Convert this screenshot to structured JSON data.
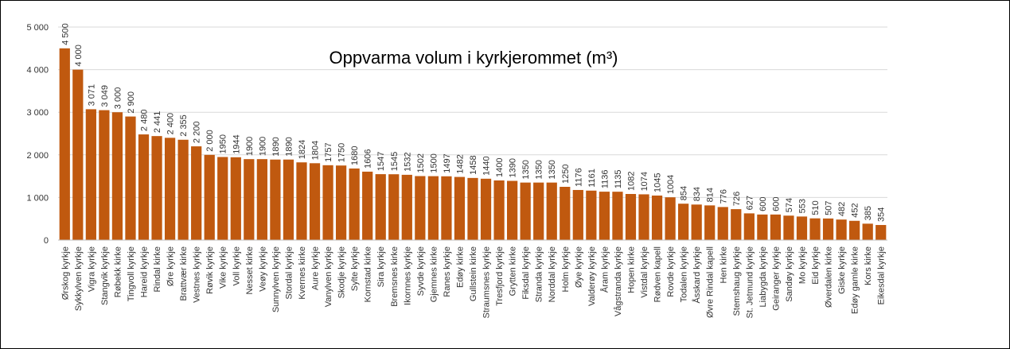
{
  "chart_data": {
    "type": "bar",
    "title": "Oppvarma volum i kyrkjerommet (m³)",
    "categories": [
      "Ørskog kyrkje",
      "Sykkylven kyrkje",
      "Vigra kyrkje",
      "Stangvik kyrkje",
      "Røbekk kirke",
      "Tingvoll kyrkje",
      "Hareid kyrkje",
      "Rindal kirke",
      "Øre kyrkje",
      "Brattvær kirke",
      "Vestnes kyrkje",
      "Røvik kyrkje",
      "Vike kyrkje",
      "Voll kyrkje",
      "Nesset kirke",
      "Veøy kyrkje",
      "Sunnylven kyrkje",
      "Stordal kyrkje",
      "Kvernes kirke",
      "Aure kyrkje",
      "Vanylven kyrkje",
      "Skodje kyrkje",
      "Sylte kyrkje",
      "Kornstad kirke",
      "Sira kyrkje",
      "Bremsnes kirke",
      "Ikornnes kyrkje",
      "Syvde kyrkje",
      "Gjemnes kirke",
      "Ranes kyrkje",
      "Edøy kirke",
      "Gullstein kirke",
      "Straumsnes kyrkje",
      "Tresfjord kyrkje",
      "Grytten kirke",
      "Fiksdal kyrkje",
      "Stranda kyrkje",
      "Norddal kyrkje",
      "Holm kyrkje",
      "Øye kyrkje",
      "Valderøy kyrkje",
      "Åram kyrkje",
      "Vågstranda kyrkje",
      "Hopen kirke",
      "Vistdal kyrkje",
      "Rødven kapell",
      "Rovde kyrkje",
      "Todalen kyrkje",
      "Åsskard kyrkje",
      "Øvre Rindal kapell",
      "Hen kirke",
      "Stemshaug kyrkje",
      "St. Jetmund kyrkje",
      "Liabygda kyrkje",
      "Geiranger kyrkje",
      "Sandøy kyrkje",
      "Mo kyrkje",
      "Eid kyrkje",
      "Øverdalen kirke",
      "Giske kyrkje",
      "Edøy gamle kirke",
      "Kors kirke",
      "Eikesdal kyrkje"
    ],
    "values": [
      4500,
      4000,
      3071,
      3049,
      3000,
      2900,
      2480,
      2441,
      2400,
      2355,
      2200,
      2000,
      1950,
      1944,
      1900,
      1900,
      1890,
      1890,
      1824,
      1804,
      1757,
      1750,
      1680,
      1606,
      1547,
      1545,
      1532,
      1502,
      1500,
      1497,
      1482,
      1458,
      1440,
      1400,
      1390,
      1350,
      1350,
      1350,
      1250,
      1176,
      1161,
      1136,
      1135,
      1082,
      1074,
      1045,
      1004,
      854,
      834,
      814,
      776,
      726,
      627,
      600,
      600,
      574,
      553,
      510,
      507,
      482,
      452,
      385,
      354
    ],
    "value_labels": [
      "4 500",
      "4 000",
      "3 071",
      "3 049",
      "3 000",
      "2 900",
      "2 480",
      "2 441",
      "2 400",
      "2 355",
      "2 200",
      "2 000",
      "1950",
      "1944",
      "1900",
      "1900",
      "1890",
      "1890",
      "1824",
      "1804",
      "1757",
      "1750",
      "1680",
      "1606",
      "1547",
      "1545",
      "1532",
      "1502",
      "1500",
      "1497",
      "1482",
      "1458",
      "1440",
      "1400",
      "1390",
      "1350",
      "1350",
      "1350",
      "1250",
      "1176",
      "1161",
      "1136",
      "1135",
      "1082",
      "1074",
      "1045",
      "1004",
      "854",
      "834",
      "814",
      "776",
      "726",
      "627",
      "600",
      "600",
      "574",
      "553",
      "510",
      "507",
      "482",
      "452",
      "385",
      "354"
    ],
    "color": "#c0590f",
    "ylim": [
      0,
      5000
    ],
    "yticks": [
      0,
      {
        "value": 1000,
        "label": "1 000"
      },
      {
        "value": 2000,
        "label": "2 000"
      },
      {
        "value": 3000,
        "label": "3 000"
      },
      {
        "value": 4000,
        "label": "4 000"
      },
      {
        "value": 5000,
        "label": "5 000"
      }
    ],
    "grid": true
  }
}
